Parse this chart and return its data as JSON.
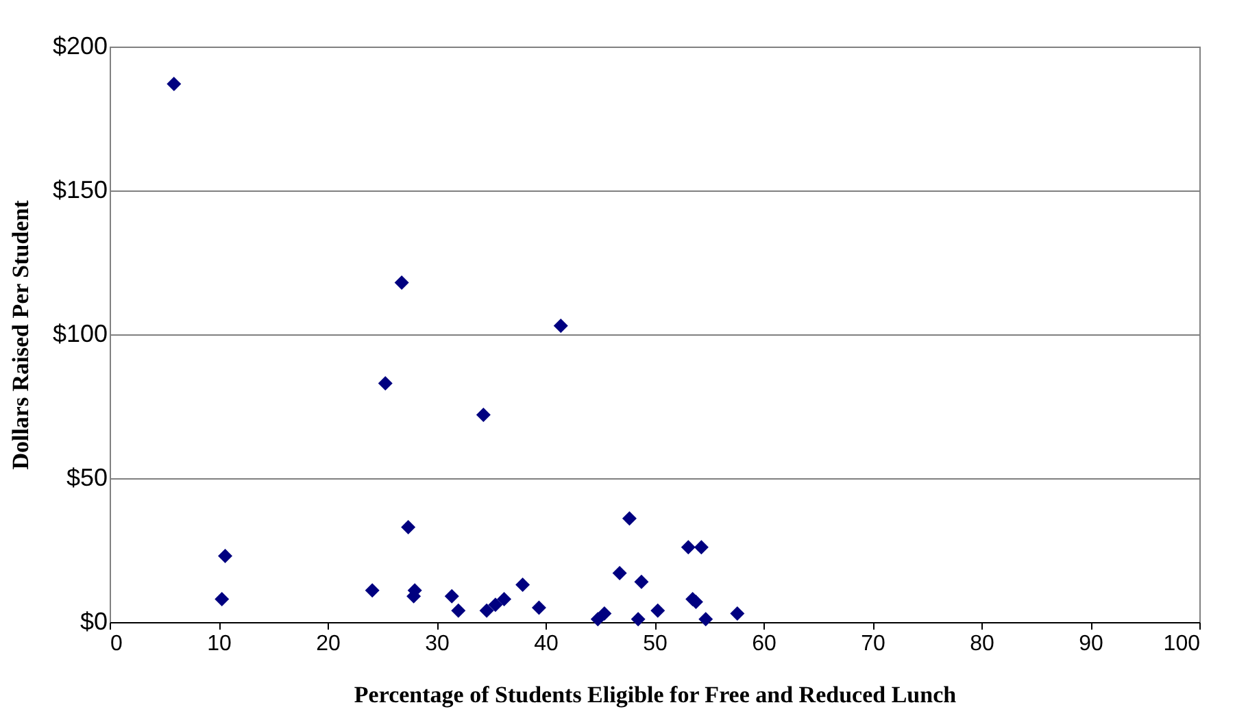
{
  "chart_data": {
    "type": "scatter",
    "xlabel": "Percentage of Students Eligible for Free and Reduced Lunch",
    "ylabel": "Dollars Raised Per Student",
    "x": [
      5.9,
      10.3,
      10.6,
      24.1,
      25.3,
      26.8,
      27.4,
      27.9,
      28.0,
      31.4,
      32.0,
      34.3,
      34.6,
      35.4,
      36.2,
      37.9,
      39.4,
      41.4,
      44.8,
      45.4,
      46.8,
      47.7,
      48.5,
      48.8,
      50.3,
      53.1,
      53.5,
      53.8,
      54.3,
      54.7,
      57.6
    ],
    "values": [
      187,
      8,
      23,
      11,
      83,
      118,
      33,
      9,
      11,
      9,
      4,
      72,
      4,
      6,
      8,
      13,
      5,
      103,
      1,
      3,
      17,
      36,
      1,
      14,
      4,
      26,
      8,
      7,
      26,
      1,
      3
    ],
    "color": "#000080",
    "marker": "diamond",
    "xlim": [
      0,
      100
    ],
    "xticks": [
      0,
      10,
      20,
      30,
      40,
      50,
      60,
      70,
      80,
      90,
      100
    ],
    "ylim": [
      0,
      200
    ],
    "yticks": [
      {
        "value": 0,
        "label": "$0"
      },
      {
        "value": 50,
        "label": "$50"
      },
      {
        "value": 100,
        "label": "$100"
      },
      {
        "value": 150,
        "label": "$150"
      },
      {
        "value": 200,
        "label": "$200"
      }
    ],
    "grid": "y"
  }
}
